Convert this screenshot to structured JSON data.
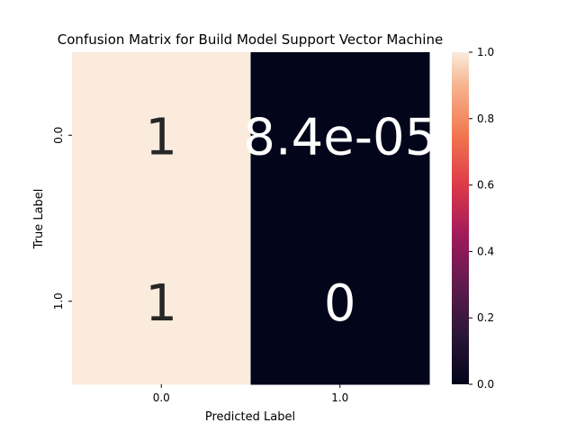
{
  "chart_data": {
    "type": "heatmap",
    "title": "Confusion Matrix for Build Model Support Vector Machine",
    "xlabel": "Predicted Label",
    "ylabel": "True Label",
    "x_categories": [
      "0.0",
      "1.0"
    ],
    "y_categories": [
      "0.0",
      "1.0"
    ],
    "values": [
      [
        1,
        8.4e-05
      ],
      [
        1,
        0
      ]
    ],
    "annotations": [
      [
        "1",
        "8.4e-05"
      ],
      [
        "1",
        "0"
      ]
    ],
    "colorbar": {
      "range": [
        0,
        1
      ],
      "ticks": [
        "0.0",
        "0.2",
        "0.4",
        "0.6",
        "0.8",
        "1.0"
      ],
      "colormap": "rocket"
    }
  }
}
